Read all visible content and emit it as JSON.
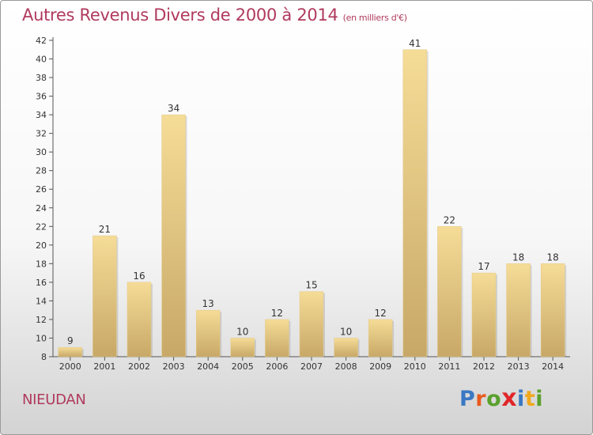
{
  "header": {
    "title": "Autres Revenus Divers de 2000 à 2014",
    "unit": "(en milliers d'€)"
  },
  "footer": {
    "commune": "NIEUDAN",
    "logo_letters": [
      "P",
      "r",
      "o",
      "x",
      "i",
      "t",
      "i"
    ],
    "logo_colors": [
      "#3a78c3",
      "#e85b1e",
      "#5aa02c",
      "#e0262a",
      "#3a78c3",
      "#f0a81c",
      "#5aa02c"
    ]
  },
  "colors": {
    "bar_light": "#f5dc97",
    "bar_dark": "#c8a867",
    "axis": "#555555",
    "title": "#b03a5e"
  },
  "chart_data": {
    "type": "bar",
    "title": "Autres Revenus Divers de 2000 à 2014",
    "subtitle": "(en milliers d'€)",
    "xlabel": "",
    "ylabel": "",
    "categories": [
      "2000",
      "2001",
      "2002",
      "2003",
      "2004",
      "2005",
      "2006",
      "2007",
      "2008",
      "2009",
      "2010",
      "2011",
      "2012",
      "2013",
      "2014"
    ],
    "values": [
      9,
      21,
      16,
      34,
      13,
      10,
      12,
      15,
      10,
      12,
      41,
      22,
      17,
      18,
      18
    ],
    "ylim": [
      8,
      42
    ],
    "yticks": [
      8,
      10,
      12,
      14,
      16,
      18,
      20,
      22,
      24,
      26,
      28,
      30,
      32,
      34,
      36,
      38,
      40,
      42
    ],
    "grid": false,
    "data_labels": true
  }
}
